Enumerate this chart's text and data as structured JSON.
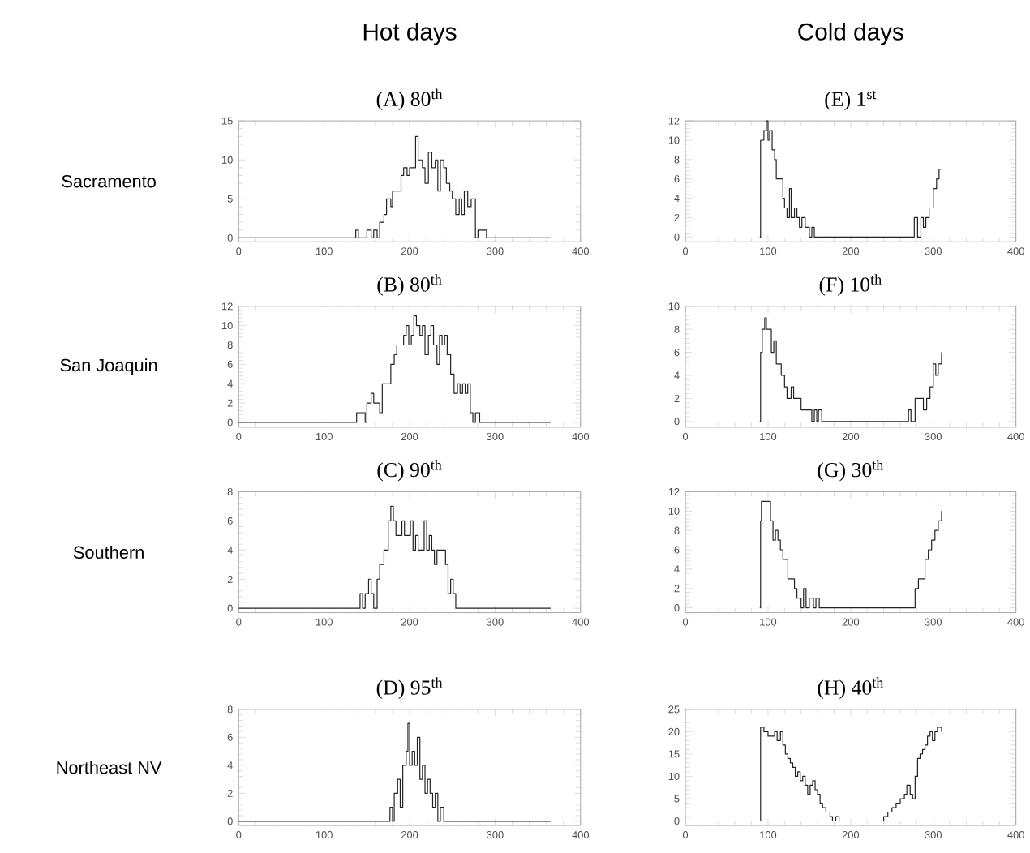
{
  "chart_data": [
    {
      "type": "step",
      "title": "(A) 80$^{th}$",
      "ylabel": "Sacramento",
      "annotations": [
        "Hot days"
      ],
      "color": "#222222",
      "xlim": [
        0,
        400
      ],
      "ylim": [
        -0.5,
        15
      ],
      "xticks": [
        0,
        100,
        200,
        300,
        400
      ],
      "yticks": [
        0,
        5,
        10,
        15
      ],
      "x": [
        0,
        135,
        137,
        140,
        150,
        155,
        158,
        162,
        165,
        170,
        173,
        178,
        180,
        185,
        190,
        193,
        197,
        200,
        204,
        207,
        210,
        215,
        218,
        222,
        226,
        230,
        233,
        236,
        240,
        243,
        247,
        250,
        254,
        258,
        261,
        264,
        268,
        272,
        277,
        280,
        286,
        290,
        365
      ],
      "values": [
        0,
        0,
        1,
        0,
        1,
        0,
        1,
        0,
        2,
        3,
        5,
        4,
        6,
        6,
        8,
        9,
        8,
        9,
        9,
        13,
        10,
        9,
        7,
        11,
        9,
        10,
        6,
        10,
        9,
        7,
        6,
        5,
        3,
        5,
        3,
        6,
        4,
        5,
        0,
        1,
        1,
        0,
        0
      ]
    },
    {
      "type": "step",
      "title": "(E) 1$^{st}$",
      "annotations": [
        "Cold days"
      ],
      "color": "#222222",
      "xlim": [
        0,
        400
      ],
      "ylim": [
        -0.5,
        12
      ],
      "xticks": [
        0,
        100,
        200,
        300,
        400
      ],
      "yticks": [
        0,
        2,
        4,
        6,
        8,
        10,
        12
      ],
      "x": [
        90,
        91,
        95,
        98,
        100,
        102,
        105,
        108,
        110,
        115,
        118,
        120,
        123,
        126,
        128,
        132,
        135,
        138,
        141,
        145,
        150,
        153,
        156,
        160,
        275,
        277,
        281,
        285,
        288,
        291,
        295,
        300,
        304,
        307,
        310
      ],
      "values": [
        0,
        10,
        11,
        12,
        10,
        11,
        9,
        8,
        6,
        6,
        4,
        3,
        2,
        5,
        2,
        3,
        2,
        1,
        2,
        1,
        0,
        1,
        0,
        0,
        0,
        2,
        0,
        2,
        1,
        2,
        3,
        5,
        6,
        7,
        7
      ]
    },
    {
      "type": "step",
      "title": "(B) 80$^{th}$",
      "ylabel": "San Joaquin",
      "color": "#222222",
      "xlim": [
        0,
        400
      ],
      "ylim": [
        -0.5,
        12
      ],
      "xticks": [
        0,
        100,
        200,
        300,
        400
      ],
      "yticks": [
        0,
        2,
        4,
        6,
        8,
        10,
        12
      ],
      "x": [
        0,
        135,
        138,
        145,
        148,
        150,
        155,
        158,
        162,
        165,
        168,
        175,
        178,
        182,
        185,
        190,
        193,
        196,
        199,
        202,
        205,
        208,
        212,
        215,
        218,
        222,
        225,
        228,
        232,
        235,
        238,
        241,
        244,
        248,
        252,
        256,
        259,
        262,
        265,
        268,
        271,
        274,
        277,
        282,
        365
      ],
      "values": [
        0,
        0,
        1,
        1,
        0,
        2,
        3,
        2,
        2,
        1,
        4,
        4,
        6,
        7,
        8,
        8,
        9,
        10,
        8,
        9,
        11,
        10,
        9,
        10,
        7,
        9,
        10,
        8,
        6,
        9,
        8,
        9,
        7,
        5,
        3,
        4,
        3,
        4,
        3,
        4,
        1,
        0,
        1,
        0,
        0
      ]
    },
    {
      "type": "step",
      "title": "(F) 10$^{th}$",
      "color": "#222222",
      "xlim": [
        0,
        400
      ],
      "ylim": [
        -0.5,
        10
      ],
      "xticks": [
        0,
        100,
        200,
        300,
        400
      ],
      "yticks": [
        0,
        2,
        4,
        6,
        8,
        10
      ],
      "x": [
        90,
        91,
        93,
        96,
        98,
        102,
        104,
        107,
        110,
        113,
        116,
        120,
        123,
        128,
        131,
        135,
        140,
        145,
        150,
        153,
        156,
        159,
        161,
        165,
        268,
        270,
        273,
        278,
        285,
        288,
        292,
        296,
        300,
        303,
        306,
        310
      ],
      "values": [
        0,
        6,
        8,
        9,
        8,
        8,
        6,
        7,
        5,
        5,
        4,
        3,
        2,
        3,
        2,
        2,
        1,
        1,
        1,
        0,
        1,
        0,
        1,
        0,
        0,
        1,
        0,
        2,
        2,
        1,
        2,
        3,
        5,
        4,
        5,
        6
      ]
    },
    {
      "type": "step",
      "title": "(C) 90$^{th}$",
      "ylabel": "Southern",
      "color": "#222222",
      "xlim": [
        0,
        400
      ],
      "ylim": [
        -0.3,
        8
      ],
      "xticks": [
        0,
        100,
        200,
        300,
        400
      ],
      "yticks": [
        0,
        2,
        4,
        6,
        8
      ],
      "x": [
        0,
        140,
        142,
        145,
        148,
        152,
        155,
        158,
        162,
        165,
        170,
        175,
        178,
        181,
        184,
        188,
        191,
        194,
        198,
        201,
        204,
        207,
        210,
        214,
        217,
        220,
        223,
        226,
        229,
        232,
        238,
        242,
        245,
        248,
        251,
        254,
        365
      ],
      "values": [
        0,
        0,
        1,
        0,
        1,
        2,
        1,
        0,
        2,
        3,
        4,
        6,
        7,
        6,
        5,
        5,
        6,
        5,
        5,
        6,
        4,
        5,
        4,
        4,
        6,
        4,
        5,
        4,
        3,
        4,
        4,
        3,
        1,
        2,
        1,
        0,
        0
      ]
    },
    {
      "type": "step",
      "title": "(G) 30$^{th}$",
      "color": "#222222",
      "xlim": [
        0,
        400
      ],
      "ylim": [
        -0.5,
        12
      ],
      "xticks": [
        0,
        100,
        200,
        300,
        400
      ],
      "yticks": [
        0,
        2,
        4,
        6,
        8,
        10,
        12
      ],
      "x": [
        90,
        91,
        92,
        100,
        103,
        106,
        109,
        112,
        115,
        118,
        121,
        124,
        128,
        132,
        135,
        140,
        143,
        146,
        150,
        155,
        158,
        162,
        275,
        278,
        282,
        286,
        290,
        294,
        298,
        302,
        306,
        310
      ],
      "values": [
        0,
        9,
        11,
        11,
        9,
        7,
        8,
        7,
        6,
        5,
        5,
        3,
        3,
        2,
        1,
        0,
        2,
        0,
        1,
        0,
        1,
        0,
        0,
        2,
        3,
        3,
        5,
        6,
        7,
        8,
        9,
        10
      ]
    },
    {
      "type": "step",
      "title": "(D) 95$^{th}$",
      "ylabel": "Northeast NV",
      "color": "#222222",
      "xlim": [
        0,
        400
      ],
      "ylim": [
        -0.3,
        8
      ],
      "xticks": [
        0,
        100,
        200,
        300,
        400
      ],
      "yticks": [
        0,
        2,
        4,
        6,
        8
      ],
      "x": [
        0,
        175,
        177,
        180,
        182,
        186,
        189,
        192,
        196,
        198,
        200,
        203,
        206,
        209,
        212,
        215,
        218,
        221,
        224,
        227,
        230,
        233,
        236,
        240,
        365
      ],
      "values": [
        0,
        0,
        1,
        0,
        2,
        3,
        1,
        4,
        5,
        7,
        4,
        5,
        4,
        6,
        3,
        4,
        2,
        3,
        2,
        1,
        2,
        0,
        1,
        0,
        0
      ]
    },
    {
      "type": "step",
      "title": "(H) 40$^{th}$",
      "color": "#222222",
      "xlim": [
        0,
        400
      ],
      "ylim": [
        -1,
        25
      ],
      "xticks": [
        0,
        100,
        200,
        300,
        400
      ],
      "yticks": [
        0,
        5,
        10,
        15,
        20,
        25
      ],
      "x": [
        90,
        91,
        95,
        100,
        105,
        108,
        111,
        115,
        118,
        121,
        124,
        127,
        130,
        133,
        136,
        139,
        142,
        145,
        148,
        151,
        154,
        157,
        160,
        163,
        166,
        170,
        175,
        178,
        182,
        186,
        235,
        240,
        245,
        250,
        255,
        260,
        265,
        268,
        272,
        275,
        278,
        281,
        284,
        287,
        290,
        293,
        296,
        299,
        302,
        305,
        310
      ],
      "values": [
        0,
        21,
        20,
        19,
        19,
        20,
        18,
        20,
        17,
        15,
        14,
        13,
        12,
        10,
        11,
        9,
        10,
        8,
        6,
        8,
        9,
        7,
        6,
        4,
        3,
        2,
        1,
        0,
        1,
        0,
        0,
        1,
        2,
        3,
        4,
        5,
        6,
        8,
        6,
        5,
        10,
        14,
        15,
        16,
        17,
        19,
        20,
        18,
        20,
        21,
        20
      ]
    }
  ]
}
